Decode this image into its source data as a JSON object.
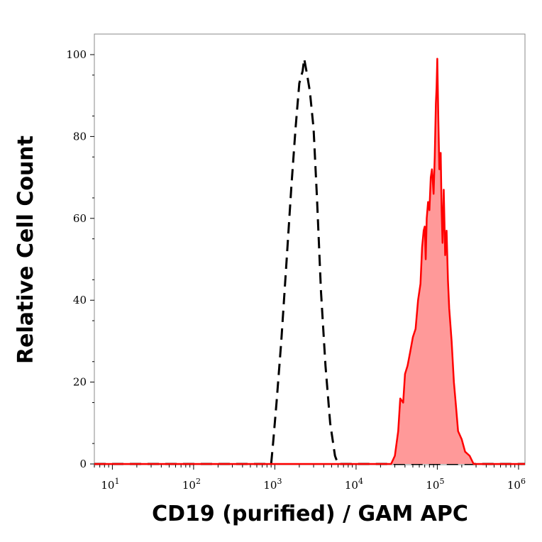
{
  "chart_data": {
    "type": "histogram",
    "xlabel": "CD19 (purified) / GAM APC",
    "ylabel": "Relative Cell Count",
    "xscale": "log",
    "xlim": [
      6,
      1200000
    ],
    "ylim": [
      0,
      105
    ],
    "x_ticks": [
      {
        "value": 10,
        "base": "10",
        "exp": "1"
      },
      {
        "value": 100,
        "base": "10",
        "exp": "2"
      },
      {
        "value": 1000,
        "base": "10",
        "exp": "3"
      },
      {
        "value": 10000,
        "base": "10",
        "exp": "4"
      },
      {
        "value": 100000,
        "base": "10",
        "exp": "5"
      },
      {
        "value": 1000000,
        "base": "10",
        "exp": "6"
      }
    ],
    "y_ticks": [
      0,
      20,
      40,
      60,
      80,
      100
    ],
    "grid": false,
    "series": [
      {
        "style": "dashed",
        "color": "#000000",
        "fill": "none",
        "x": [
          6,
          100,
          900,
          950,
          1050,
          1200,
          1400,
          1600,
          1800,
          2000,
          2200,
          2300,
          2500,
          2700,
          3000,
          3300,
          3700,
          4200,
          4800,
          5500,
          6000,
          1200000
        ],
        "y": [
          0,
          0,
          0,
          5,
          15,
          30,
          50,
          68,
          82,
          93,
          96,
          99,
          95,
          91,
          82,
          65,
          42,
          24,
          10,
          2,
          0,
          0
        ]
      },
      {
        "style": "solid",
        "color": "#ff0000",
        "fill": "#ff9999",
        "x": [
          6,
          1000,
          20000,
          27000,
          30000,
          33000,
          35000,
          38000,
          40000,
          43000,
          46000,
          50000,
          54000,
          58000,
          62000,
          65000,
          68000,
          70000,
          72000,
          74000,
          77000,
          80000,
          83000,
          86000,
          90000,
          93000,
          96000,
          98000,
          100000,
          103000,
          106000,
          110000,
          113000,
          116000,
          120000,
          125000,
          130000,
          135000,
          140000,
          150000,
          160000,
          170000,
          180000,
          200000,
          220000,
          250000,
          280000,
          300000,
          1200000
        ],
        "y": [
          0,
          0,
          0,
          0,
          2,
          8,
          16,
          15,
          22,
          24,
          27,
          31,
          33,
          40,
          44,
          53,
          57,
          58,
          50,
          60,
          64,
          62,
          70,
          72,
          66,
          75,
          88,
          92,
          99,
          84,
          72,
          76,
          62,
          54,
          67,
          51,
          57,
          45,
          38,
          30,
          20,
          14,
          8,
          6,
          3,
          2,
          0,
          0,
          0
        ]
      }
    ]
  }
}
